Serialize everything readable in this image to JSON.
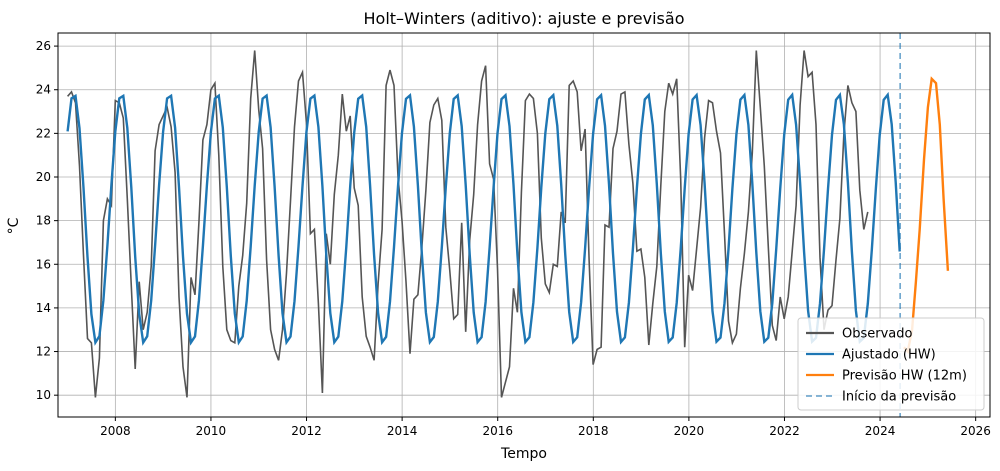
{
  "chart_data": {
    "type": "line",
    "title": "Holt–Winters (aditivo): ajuste e previsão",
    "xlabel": "Tempo",
    "ylabel": "°C",
    "xlim": [
      2006.8,
      2026.3
    ],
    "ylim": [
      9.0,
      26.6
    ],
    "x_ticks": [
      2008,
      2010,
      2012,
      2014,
      2016,
      2018,
      2020,
      2022,
      2024,
      2026
    ],
    "y_ticks": [
      10,
      12,
      14,
      16,
      18,
      20,
      22,
      24,
      26
    ],
    "grid": true,
    "legend_position": "lower-right",
    "forecast_start": 2024.42,
    "series": [
      {
        "name": "Observado",
        "color": "#555555",
        "x_start": 2007.0,
        "x_step": 0.0833,
        "values": [
          23.7,
          23.9,
          23.4,
          20.5,
          16.4,
          12.6,
          12.4,
          9.9,
          11.7,
          18.0,
          19.0,
          18.7,
          23.5,
          23.4,
          22.7,
          19.0,
          15.0,
          11.2,
          15.2,
          13.0,
          13.8,
          15.9,
          21.2,
          22.4,
          22.8,
          23.2,
          22.3,
          20.2,
          14.5,
          11.3,
          9.9,
          15.4,
          14.6,
          17.9,
          21.7,
          22.4,
          24.0,
          24.3,
          21.0,
          15.9,
          13.0,
          12.5,
          12.4,
          15.0,
          16.4,
          18.8,
          23.6,
          25.8,
          23.1,
          21.3,
          16.2,
          13.0,
          12.1,
          11.6,
          13.0,
          15.6,
          18.9,
          22.3,
          24.4,
          24.8,
          22.5,
          17.4,
          17.6,
          14.2,
          10.1,
          17.4,
          16.0,
          19.2,
          21.0,
          23.8,
          22.1,
          22.8,
          19.5,
          18.7,
          14.5,
          12.7,
          12.2,
          11.6,
          15.1,
          17.6,
          24.2,
          24.9,
          24.2,
          20.0,
          18.0,
          15.2,
          11.9,
          14.4,
          14.6,
          16.8,
          19.4,
          22.5,
          23.3,
          23.6,
          22.6,
          17.7,
          15.7,
          13.5,
          13.7,
          17.9,
          12.9,
          17.1,
          19.2,
          22.4,
          24.4,
          25.1,
          20.6,
          19.9,
          15.8,
          9.9,
          10.6,
          11.3,
          14.9,
          13.8,
          19.3,
          23.5,
          23.8,
          23.6,
          22.0,
          17.2,
          15.1,
          14.7,
          16.0,
          15.9,
          18.4,
          17.9,
          24.2,
          24.4,
          23.9,
          21.2,
          22.2,
          16.2,
          11.4,
          12.1,
          12.2,
          17.8,
          17.7,
          21.3,
          22.1,
          23.8,
          23.9,
          21.5,
          19.7,
          16.6,
          16.7,
          15.4,
          12.3,
          14.2,
          15.9,
          19.6,
          23.0,
          24.3,
          23.8,
          24.5,
          19.9,
          12.2,
          15.5,
          14.8,
          16.7,
          18.6,
          21.8,
          23.5,
          23.4,
          22.1,
          21.1,
          17.4,
          13.4,
          12.4,
          12.8,
          14.9,
          16.5,
          18.4,
          21.1,
          25.8,
          23.2,
          20.5,
          16.8,
          13.2,
          12.5,
          14.5,
          13.5,
          14.5,
          16.6,
          18.7,
          23.3,
          25.8,
          24.6,
          24.8,
          22.4,
          16.3,
          13.0,
          13.9,
          14.1,
          16.2,
          18.1,
          22.0,
          24.2,
          23.4,
          23.0,
          19.4,
          17.6,
          18.4
        ]
      },
      {
        "name": "Ajustado (HW)",
        "color": "#1f77b4",
        "x_start": 2007.0,
        "x_step": 0.0833,
        "phase_peak": 0.12,
        "amplitude": 5.75,
        "mean": 18.1,
        "x_end": 2024.42
      },
      {
        "name": "Previsão HW (12m)",
        "color": "#ff7f0e",
        "x": [
          2024.5,
          2024.58,
          2024.67,
          2024.75,
          2024.83,
          2024.92,
          2025.0,
          2025.08,
          2025.17,
          2025.25,
          2025.33,
          2025.42
        ],
        "values": [
          12.2,
          12.0,
          13.0,
          15.2,
          17.6,
          20.8,
          23.2,
          24.5,
          24.3,
          22.4,
          19.0,
          15.7
        ]
      }
    ],
    "legend": [
      {
        "label": "Observado",
        "color": "#555555",
        "style": "solid"
      },
      {
        "label": "Ajustado (HW)",
        "color": "#1f77b4",
        "style": "solid"
      },
      {
        "label": "Previsão HW (12m)",
        "color": "#ff7f0e",
        "style": "solid"
      },
      {
        "label": "Início da previsão",
        "color": "#1f77b4",
        "style": "dashed"
      }
    ]
  }
}
